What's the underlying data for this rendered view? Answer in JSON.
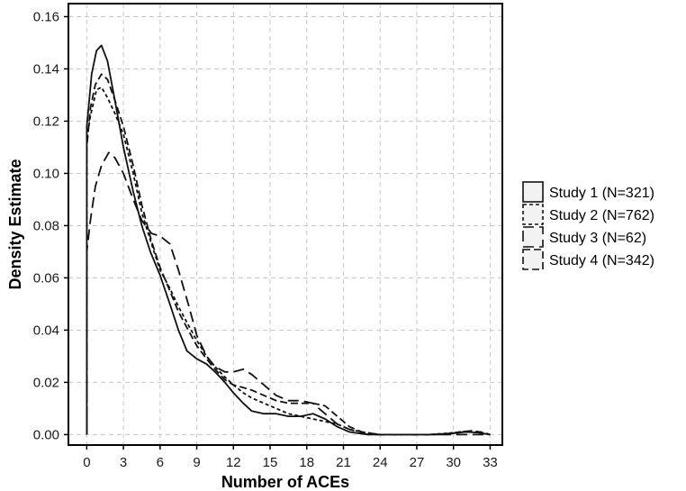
{
  "chart_data": {
    "type": "line",
    "title": "",
    "xlabel": "Number of ACEs",
    "ylabel": "Density Estimate",
    "xlim": [
      -1.5,
      34
    ],
    "ylim": [
      -0.004,
      0.165
    ],
    "xticks": [
      0,
      3,
      6,
      9,
      12,
      15,
      18,
      21,
      24,
      27,
      30,
      33
    ],
    "yticks": [
      0.0,
      0.02,
      0.04,
      0.06,
      0.08,
      0.1,
      0.12,
      0.14,
      0.16
    ],
    "ytick_labels": [
      "0.00",
      "0.02",
      "0.04",
      "0.06",
      "0.08",
      "0.10",
      "0.12",
      "0.14",
      "0.16"
    ],
    "grid": true,
    "legend_position": "right",
    "series": [
      {
        "name": "Study 1 (N=321)",
        "dash": "solid",
        "points": [
          [
            0,
            0.118
          ],
          [
            0.4,
            0.138
          ],
          [
            0.8,
            0.147
          ],
          [
            1.2,
            0.149
          ],
          [
            1.7,
            0.143
          ],
          [
            2.3,
            0.128
          ],
          [
            3,
            0.11
          ],
          [
            3.8,
            0.093
          ],
          [
            4.5,
            0.08
          ],
          [
            5.2,
            0.07
          ],
          [
            6,
            0.061
          ],
          [
            6.8,
            0.05
          ],
          [
            7.5,
            0.04
          ],
          [
            8.2,
            0.032
          ],
          [
            9,
            0.029
          ],
          [
            9.8,
            0.027
          ],
          [
            10.5,
            0.024
          ],
          [
            11.3,
            0.02
          ],
          [
            12,
            0.016
          ],
          [
            12.8,
            0.012
          ],
          [
            13.5,
            0.009
          ],
          [
            14.5,
            0.008
          ],
          [
            15.5,
            0.008
          ],
          [
            16.5,
            0.007
          ],
          [
            17.5,
            0.007
          ],
          [
            18.5,
            0.008
          ],
          [
            19.5,
            0.006
          ],
          [
            20.5,
            0.003
          ],
          [
            21.5,
            0.001
          ],
          [
            23,
            0.0
          ],
          [
            28,
            0.0
          ],
          [
            30,
            0.0005
          ],
          [
            31,
            0.001
          ],
          [
            32,
            0.0008
          ],
          [
            33,
            0.0
          ]
        ]
      },
      {
        "name": "Study 2 (N=762)",
        "dash": "short-dash",
        "points": [
          [
            0,
            0.113
          ],
          [
            0.3,
            0.122
          ],
          [
            0.8,
            0.132
          ],
          [
            1.2,
            0.133
          ],
          [
            1.7,
            0.129
          ],
          [
            2.3,
            0.123
          ],
          [
            3,
            0.115
          ],
          [
            3.8,
            0.1
          ],
          [
            4.5,
            0.085
          ],
          [
            5.3,
            0.073
          ],
          [
            6,
            0.063
          ],
          [
            6.8,
            0.056
          ],
          [
            7.5,
            0.049
          ],
          [
            8.3,
            0.042
          ],
          [
            9,
            0.036
          ],
          [
            9.8,
            0.03
          ],
          [
            10.5,
            0.026
          ],
          [
            11.3,
            0.022
          ],
          [
            12,
            0.019
          ],
          [
            12.8,
            0.016
          ],
          [
            13.5,
            0.014
          ],
          [
            14.5,
            0.012
          ],
          [
            15.5,
            0.01
          ],
          [
            16.5,
            0.008
          ],
          [
            17.5,
            0.007
          ],
          [
            18.5,
            0.006
          ],
          [
            19.5,
            0.005
          ],
          [
            20.5,
            0.004
          ],
          [
            21.5,
            0.002
          ],
          [
            22.5,
            0.001
          ],
          [
            24,
            0.0
          ],
          [
            28,
            0.0
          ],
          [
            30,
            0.0007
          ],
          [
            31,
            0.0012
          ],
          [
            32,
            0.0008
          ],
          [
            33,
            0.0
          ]
        ]
      },
      {
        "name": "Study 3 (N=62)",
        "dash": "long-dash",
        "points": [
          [
            0,
            0.07
          ],
          [
            0.3,
            0.082
          ],
          [
            0.7,
            0.095
          ],
          [
            1.2,
            0.103
          ],
          [
            1.8,
            0.108
          ],
          [
            2.3,
            0.106
          ],
          [
            3,
            0.1
          ],
          [
            3.8,
            0.09
          ],
          [
            4.5,
            0.082
          ],
          [
            5.3,
            0.077
          ],
          [
            6,
            0.076
          ],
          [
            6.8,
            0.073
          ],
          [
            7.5,
            0.063
          ],
          [
            8.3,
            0.05
          ],
          [
            9,
            0.038
          ],
          [
            9.8,
            0.03
          ],
          [
            10.5,
            0.026
          ],
          [
            11.3,
            0.024
          ],
          [
            12,
            0.024
          ],
          [
            12.8,
            0.025
          ],
          [
            13.5,
            0.023
          ],
          [
            14.5,
            0.019
          ],
          [
            15.5,
            0.015
          ],
          [
            16.5,
            0.013
          ],
          [
            17.5,
            0.013
          ],
          [
            18.5,
            0.012
          ],
          [
            19.5,
            0.008
          ],
          [
            20.5,
            0.004
          ],
          [
            21.5,
            0.002
          ],
          [
            23,
            0.0
          ],
          [
            33,
            0.0
          ]
        ]
      },
      {
        "name": "Study 4 (N=342)",
        "dash": "dash",
        "points": [
          [
            0,
            0.11
          ],
          [
            0.3,
            0.125
          ],
          [
            0.7,
            0.134
          ],
          [
            1.2,
            0.138
          ],
          [
            1.7,
            0.136
          ],
          [
            2.3,
            0.128
          ],
          [
            3,
            0.118
          ],
          [
            3.8,
            0.103
          ],
          [
            4.5,
            0.088
          ],
          [
            5.3,
            0.074
          ],
          [
            6,
            0.064
          ],
          [
            6.8,
            0.055
          ],
          [
            7.5,
            0.047
          ],
          [
            8.3,
            0.04
          ],
          [
            9,
            0.034
          ],
          [
            9.8,
            0.029
          ],
          [
            10.5,
            0.025
          ],
          [
            11.3,
            0.021
          ],
          [
            12,
            0.019
          ],
          [
            12.8,
            0.018
          ],
          [
            13.5,
            0.017
          ],
          [
            14.5,
            0.015
          ],
          [
            15.5,
            0.013
          ],
          [
            16.5,
            0.012
          ],
          [
            17.5,
            0.012
          ],
          [
            18.5,
            0.012
          ],
          [
            19.5,
            0.011
          ],
          [
            20.5,
            0.007
          ],
          [
            21.5,
            0.003
          ],
          [
            22.5,
            0.001
          ],
          [
            24,
            0.0
          ],
          [
            29,
            0.0
          ],
          [
            30.5,
            0.001
          ],
          [
            31.5,
            0.0015
          ],
          [
            32.5,
            0.0008
          ],
          [
            33,
            0.0
          ]
        ]
      }
    ]
  }
}
